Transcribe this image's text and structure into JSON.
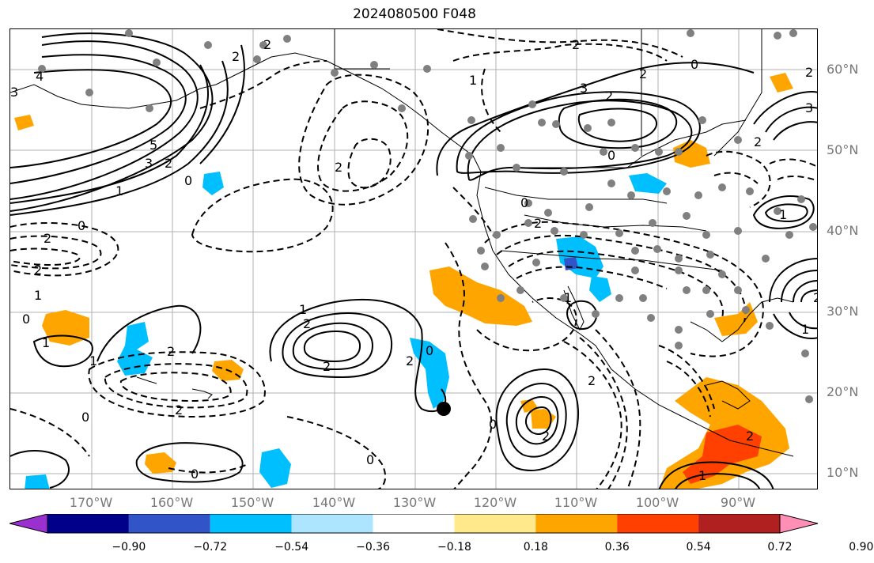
{
  "title": "2024080500 F048",
  "lat_labels": [
    "60°N",
    "50°N",
    "40°N",
    "30°N",
    "20°N",
    "10°N"
  ],
  "lon_labels": [
    "170°W",
    "160°W",
    "150°W",
    "140°W",
    "130°W",
    "120°W",
    "110°W",
    "100°W",
    "90°W"
  ],
  "colorbar": {
    "tick_labels": [
      "−0.90",
      "−0.72",
      "−0.54",
      "−0.36",
      "−0.18",
      "0.18",
      "0.36",
      "0.54",
      "0.72",
      "0.90"
    ],
    "colors": [
      "#9b30d0",
      "#00008b",
      "#3155c8",
      "#00bfff",
      "#ade4ff",
      "#ffffff",
      "#ffe98a",
      "#ffa500",
      "#ff4000",
      "#b02020",
      "#ff8fb4"
    ]
  },
  "contour_labels": [
    "3",
    "4",
    "5",
    "3",
    "2",
    "1",
    "0",
    "2",
    "2",
    "2",
    "0",
    "2",
    "2",
    "1",
    "0",
    "1",
    "2",
    "2",
    "2",
    "2",
    "1",
    "0",
    "2",
    "1",
    "0",
    "2",
    "3",
    "2",
    "0",
    "2",
    "0",
    "2",
    "2",
    "1",
    "3",
    "2",
    "0",
    "1",
    "1",
    "2",
    "0",
    "2",
    "2",
    "1",
    "2",
    "1",
    "0",
    "0"
  ],
  "fill_colors": {
    "positive": "#ffa500",
    "strong_positive": "#ff4000",
    "negative": "#00bfff",
    "strong_negative": "#3155c8"
  }
}
